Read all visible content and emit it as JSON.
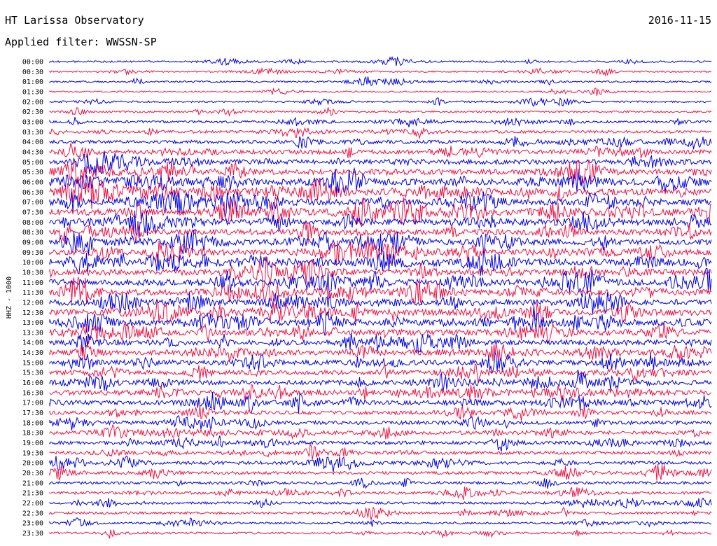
{
  "header": {
    "title": "HT Larissa Observatory",
    "date": "2016-11-15",
    "filter_text": "Applied filter: WWSSN-SP"
  },
  "colors": {
    "trace_a": "#0000dd",
    "trace_b": "#ee1144",
    "background": "#ffffff",
    "text": "#000000"
  },
  "chart_data": {
    "type": "line",
    "chart_kind": "helicorder",
    "title": "HT Larissa Observatory",
    "ylabel": "HHZ - 1000",
    "xlabel": "",
    "grid": false,
    "legend": "none",
    "series_colors_alternate": [
      "#0000dd",
      "#ee1144"
    ],
    "rows": [
      {
        "label": "00:00",
        "activity": 0.15
      },
      {
        "label": "00:30",
        "activity": 0.12
      },
      {
        "label": "01:00",
        "activity": 0.14
      },
      {
        "label": "01:30",
        "activity": 0.1
      },
      {
        "label": "02:00",
        "activity": 0.16
      },
      {
        "label": "02:30",
        "activity": 0.18
      },
      {
        "label": "03:00",
        "activity": 0.25
      },
      {
        "label": "03:30",
        "activity": 0.3
      },
      {
        "label": "04:00",
        "activity": 0.4
      },
      {
        "label": "04:30",
        "activity": 0.55
      },
      {
        "label": "05:00",
        "activity": 0.6
      },
      {
        "label": "05:30",
        "activity": 0.7
      },
      {
        "label": "06:00",
        "activity": 0.85
      },
      {
        "label": "06:30",
        "activity": 0.9
      },
      {
        "label": "07:00",
        "activity": 0.85
      },
      {
        "label": "07:30",
        "activity": 0.9
      },
      {
        "label": "08:00",
        "activity": 0.8
      },
      {
        "label": "08:30",
        "activity": 0.75
      },
      {
        "label": "09:00",
        "activity": 0.75
      },
      {
        "label": "09:30",
        "activity": 0.8
      },
      {
        "label": "10:00",
        "activity": 0.85
      },
      {
        "label": "10:30",
        "activity": 0.8
      },
      {
        "label": "11:00",
        "activity": 0.85
      },
      {
        "label": "11:30",
        "activity": 0.8
      },
      {
        "label": "12:00",
        "activity": 0.8
      },
      {
        "label": "12:30",
        "activity": 0.85
      },
      {
        "label": "13:00",
        "activity": 0.85
      },
      {
        "label": "13:30",
        "activity": 0.8
      },
      {
        "label": "14:00",
        "activity": 0.7
      },
      {
        "label": "14:30",
        "activity": 0.7
      },
      {
        "label": "15:00",
        "activity": 0.65
      },
      {
        "label": "15:30",
        "activity": 0.6
      },
      {
        "label": "16:00",
        "activity": 0.6
      },
      {
        "label": "16:30",
        "activity": 0.65
      },
      {
        "label": "17:00",
        "activity": 0.55
      },
      {
        "label": "17:30",
        "activity": 0.45
      },
      {
        "label": "18:00",
        "activity": 0.45
      },
      {
        "label": "18:30",
        "activity": 0.45
      },
      {
        "label": "19:00",
        "activity": 0.4
      },
      {
        "label": "19:30",
        "activity": 0.4
      },
      {
        "label": "20:00",
        "activity": 0.4
      },
      {
        "label": "20:30",
        "activity": 0.35
      },
      {
        "label": "21:00",
        "activity": 0.3
      },
      {
        "label": "21:30",
        "activity": 0.3
      },
      {
        "label": "22:00",
        "activity": 0.25
      },
      {
        "label": "22:30",
        "activity": 0.25
      },
      {
        "label": "23:00",
        "activity": 0.2
      },
      {
        "label": "23:30",
        "activity": 0.2
      }
    ]
  }
}
